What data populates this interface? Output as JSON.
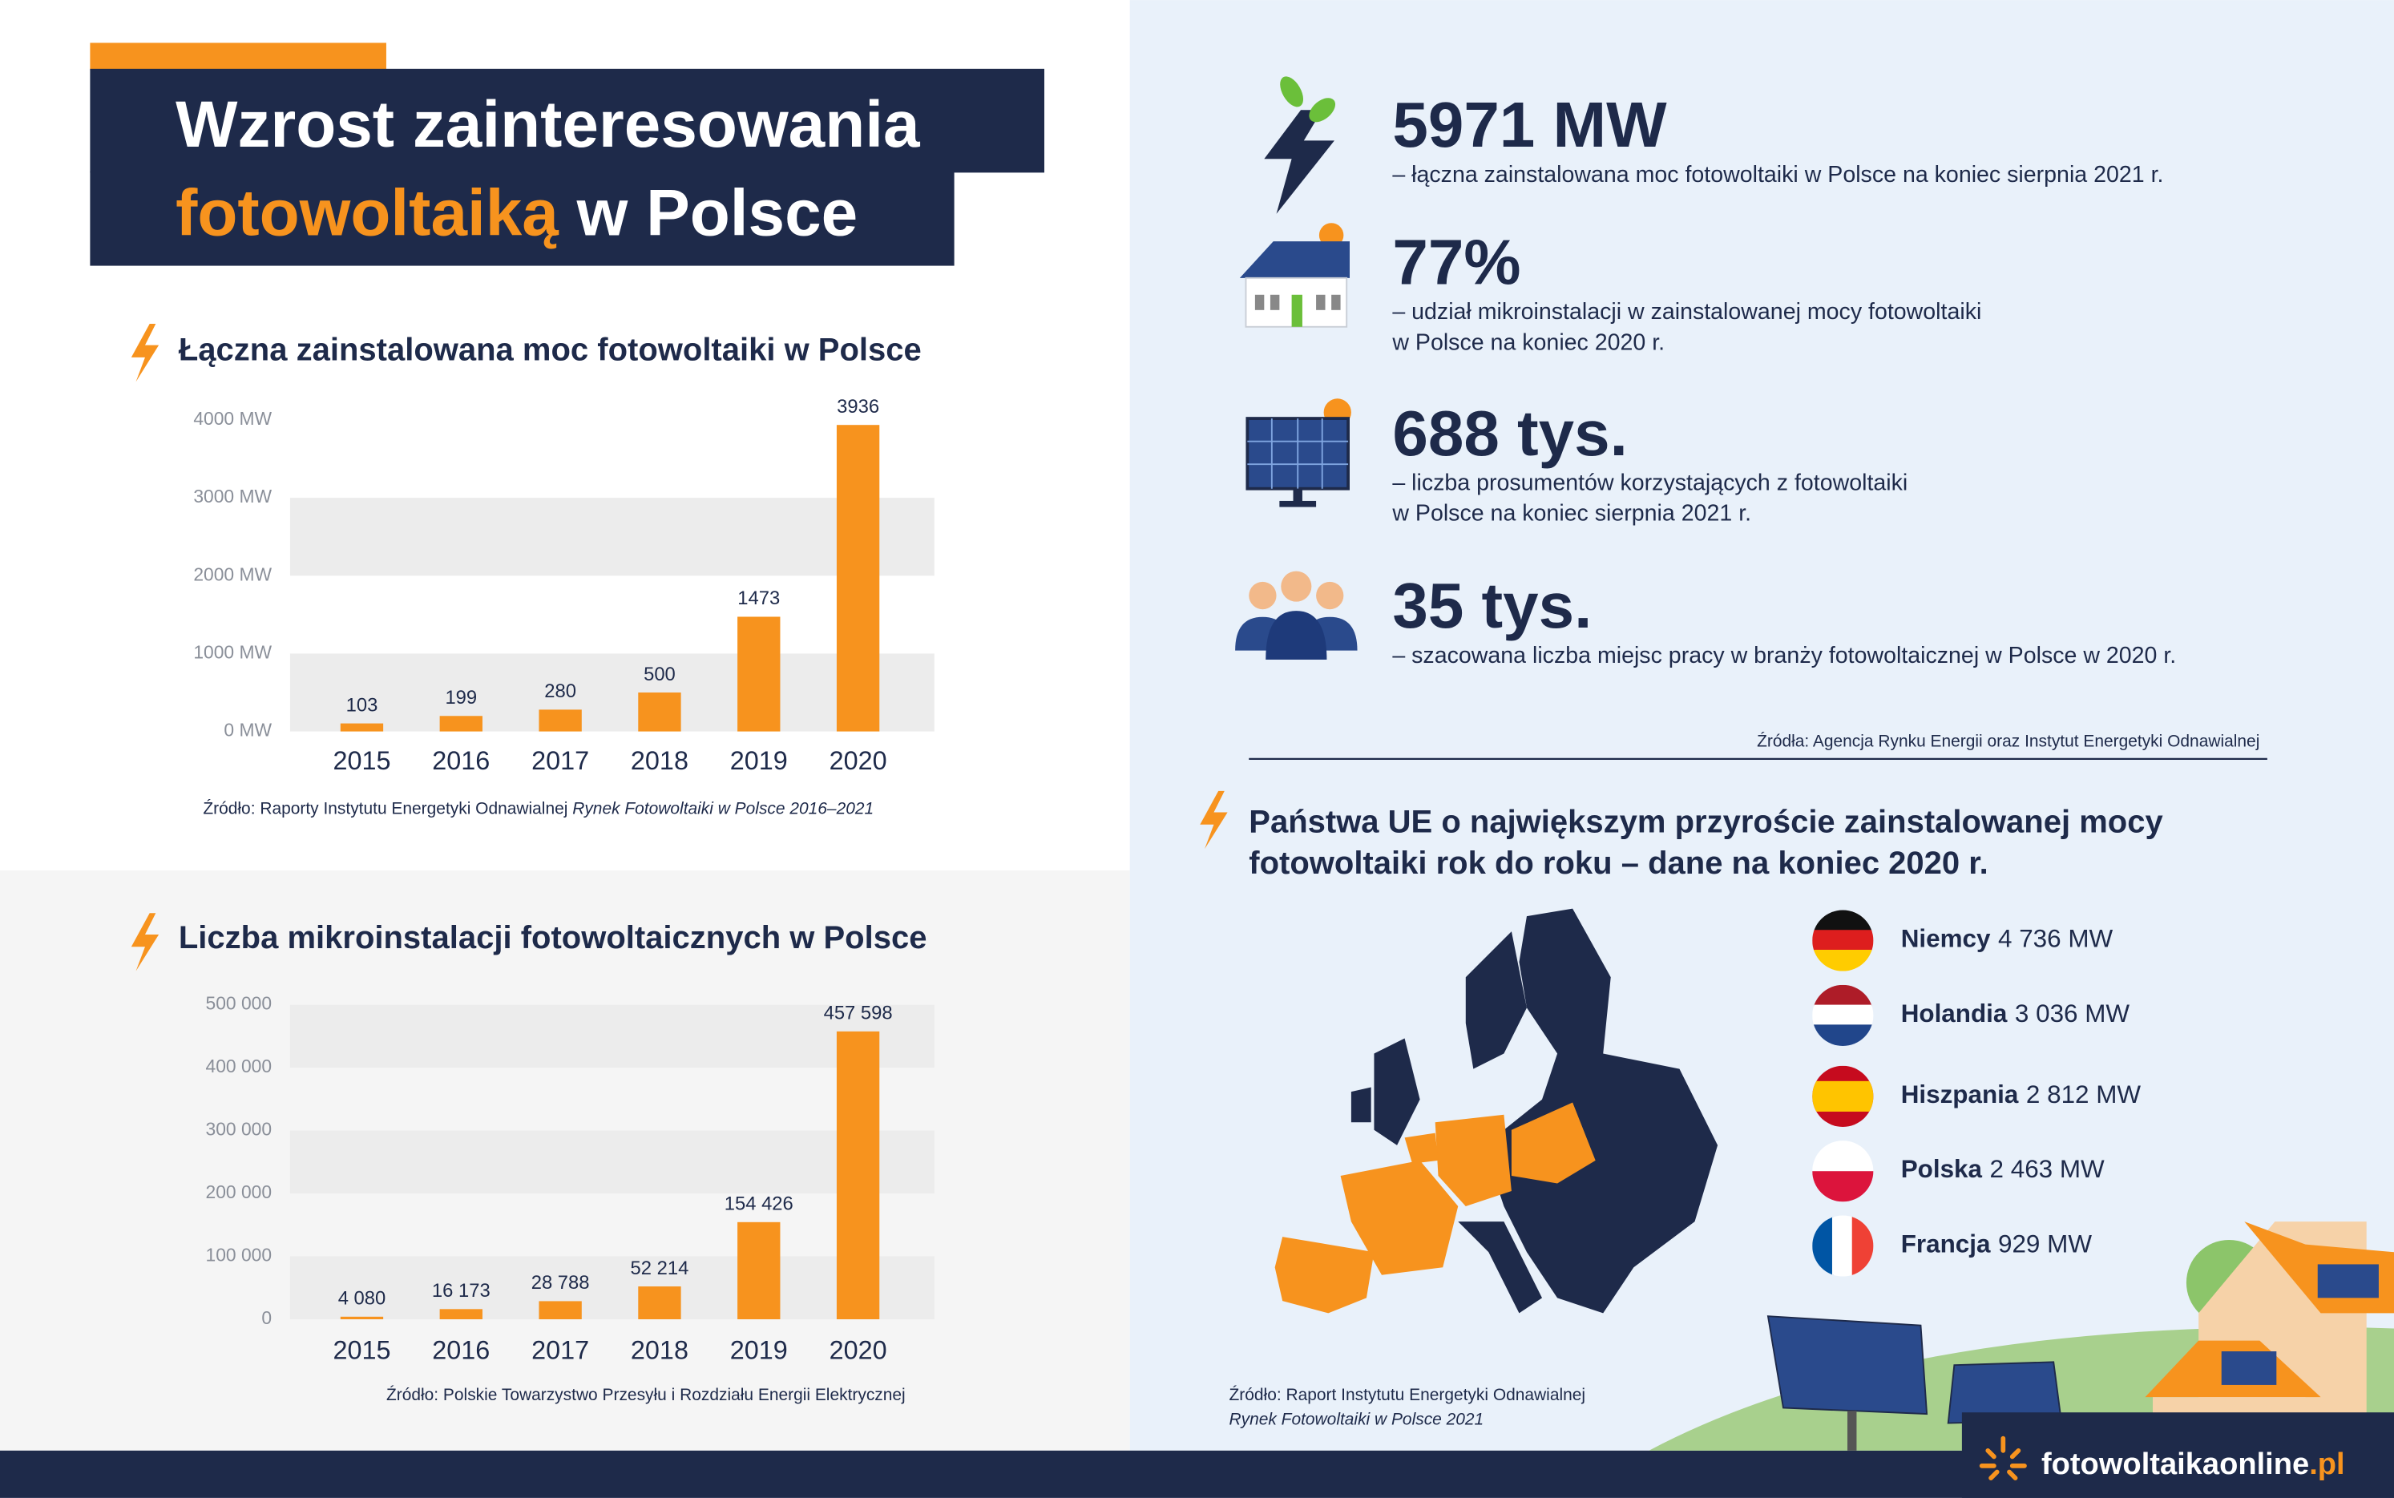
{
  "header": {
    "title_line1": "Wzrost zainteresowania",
    "title_highlight": "fotowoltaiką",
    "title_rest": "w Polsce"
  },
  "chart_data": [
    {
      "type": "bar",
      "title": "Łączna zainstalowana moc fotowoltaiki w Polsce",
      "categories": [
        "2015",
        "2016",
        "2017",
        "2018",
        "2019",
        "2020"
      ],
      "values": [
        103,
        199,
        280,
        500,
        1473,
        3936
      ],
      "color": "#f7931e",
      "ylim": [
        0,
        4000
      ],
      "yticks": [
        {
          "value": 0,
          "label": "0 MW"
        },
        {
          "value": 1000,
          "label": "1000 MW"
        },
        {
          "value": 2000,
          "label": "2000 MW"
        },
        {
          "value": 3000,
          "label": "3000 MW"
        },
        {
          "value": 4000,
          "label": "4000 MW"
        }
      ],
      "grid": true,
      "source": "Źródło: Raporty Instytutu Energetyki Odnawialnej ",
      "source_italic": "Rynek Fotowoltaiki w Polsce 2016–2021"
    },
    {
      "type": "bar",
      "title": "Liczba mikroinstalacji fotowoltaicznych w Polsce",
      "categories": [
        "2015",
        "2016",
        "2017",
        "2018",
        "2019",
        "2020"
      ],
      "values": [
        4080,
        16173,
        28788,
        52214,
        154426,
        457598
      ],
      "value_labels": [
        "4 080",
        "16 173",
        "28 788",
        "52 214",
        "154 426",
        "457 598"
      ],
      "color": "#f7931e",
      "ylim": [
        0,
        500000
      ],
      "yticks": [
        0,
        {
          "value": 100000,
          "label": "100 000"
        },
        {
          "value": 200000,
          "label": "200 000"
        },
        {
          "value": 300000,
          "label": "300 000"
        },
        {
          "value": 400000,
          "label": "400 000"
        },
        {
          "value": 500000,
          "label": "500 000"
        }
      ],
      "grid": true,
      "source": "Źródło: Polskie Towarzystwo Przesyłu i Rozdziału Energii Elektrycznej"
    }
  ],
  "stats": [
    {
      "value": "5971 MW",
      "desc": [
        "– łączna zainstalowana moc fotowoltaiki w Polsce na koniec sierpnia 2021 r."
      ]
    },
    {
      "value": "77%",
      "desc": [
        "– udział mikroinstalacji w zainstalowanej mocy fotowoltaiki",
        "w Polsce na koniec 2020 r."
      ]
    },
    {
      "value": "688 tys.",
      "desc": [
        "– liczba prosumentów korzystających z fotowoltaiki",
        "w Polsce na koniec sierpnia 2021 r."
      ]
    },
    {
      "value": "35 tys.",
      "desc": [
        "– szacowana liczba miejsc pracy w branży fotowoltaicznej w Polsce w 2020 r."
      ]
    }
  ],
  "stats_source": "Źródła: Agencja Rynku Energii oraz Instytut Energetyki Odnawialnej",
  "eu": {
    "title": [
      "Państwa UE o największym przyroście zainstalowanej mocy",
      "fotowoltaiki rok do roku – dane na koniec 2020 r."
    ],
    "countries": [
      {
        "name": "Niemcy",
        "value": "4 736 MW"
      },
      {
        "name": "Holandia",
        "value": "3 036 MW"
      },
      {
        "name": "Hiszpania",
        "value": "2 812 MW"
      },
      {
        "name": "Polska",
        "value": "2 463 MW"
      },
      {
        "name": "Francja",
        "value": "929 MW"
      }
    ],
    "source": "Źródło: Raport Instytutu Energetyki Odnawialnej",
    "source_italic": "Rynek Fotowoltaiki w Polsce 2021"
  },
  "brand": {
    "name": "fotowoltaikaonline",
    "tld": ".pl"
  }
}
